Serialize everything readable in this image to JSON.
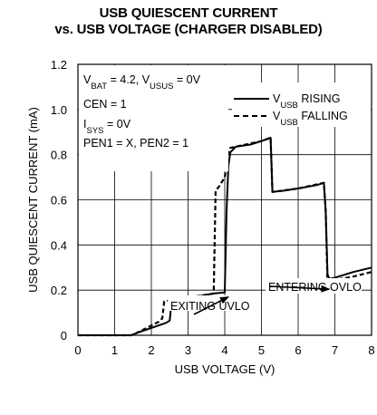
{
  "chart_data": {
    "type": "line",
    "title": "USB QUIESCENT CURRENT",
    "subtitle": "vs. USB VOLTAGE (CHARGER DISABLED)",
    "xlabel": "USB VOLTAGE (V)",
    "ylabel": "USB QUIESCENT CURRENT (mA)",
    "xlim": [
      0,
      8
    ],
    "ylim": [
      0,
      1.2
    ],
    "x_ticks": [
      0,
      1,
      2,
      3,
      4,
      5,
      6,
      7,
      8
    ],
    "y_ticks": [
      0,
      0.2,
      0.4,
      0.6,
      0.8,
      1.0,
      1.2
    ],
    "y_tick_labels": [
      "0",
      "0.2",
      "0.4",
      "0.6",
      "0.8",
      "1.0",
      "1.2"
    ],
    "grid": true,
    "legend_position": "top-right",
    "series": [
      {
        "name": "V_USB RISING",
        "style": "solid",
        "x": [
          0,
          1.45,
          1.6,
          2.4,
          2.5,
          2.55,
          3.7,
          4.0,
          4.05,
          4.1,
          4.15,
          4.3,
          4.7,
          5.0,
          5.25,
          5.3,
          5.6,
          6.0,
          6.5,
          6.7,
          6.75,
          6.8,
          6.85,
          7.0,
          7.5,
          8.0
        ],
        "y": [
          0,
          0.0,
          0.01,
          0.055,
          0.065,
          0.15,
          0.185,
          0.19,
          0.55,
          0.75,
          0.81,
          0.835,
          0.845,
          0.86,
          0.875,
          0.635,
          0.64,
          0.65,
          0.665,
          0.675,
          0.55,
          0.27,
          0.25,
          0.255,
          0.28,
          0.3
        ]
      },
      {
        "name": "V_USB FALLING",
        "style": "dashed",
        "x": [
          0,
          1.45,
          1.6,
          2.2,
          2.3,
          2.35,
          3.7,
          3.75,
          3.85,
          4.0,
          4.1,
          4.15,
          4.3,
          5.0,
          5.25,
          5.3,
          6.0,
          6.7,
          6.75,
          6.8,
          7.0,
          7.5,
          8.0
        ],
        "y": [
          0,
          0.0,
          0.01,
          0.06,
          0.075,
          0.15,
          0.185,
          0.64,
          0.66,
          0.7,
          0.81,
          0.83,
          0.835,
          0.86,
          0.875,
          0.635,
          0.65,
          0.675,
          0.55,
          0.23,
          0.245,
          0.26,
          0.28
        ]
      }
    ],
    "legend": [
      {
        "base": "V",
        "sub": "USB",
        "suffix": " RISING",
        "style": "solid"
      },
      {
        "base": "V",
        "sub": "USB",
        "suffix": " FALLING",
        "style": "dashed"
      }
    ],
    "conditions": [
      [
        {
          "t": "V"
        },
        {
          "t": "BAT",
          "sub": true
        },
        {
          "t": " = 4.2, V"
        },
        {
          "t": "USUS",
          "sub": true
        },
        {
          "t": " = 0V"
        }
      ],
      [
        {
          "t": "CEN = 1"
        }
      ],
      [
        {
          "t": "I"
        },
        {
          "t": "SYS",
          "sub": true
        },
        {
          "t": " = 0V"
        }
      ],
      [
        {
          "t": "PEN1 = X, PEN2 = 1"
        }
      ]
    ],
    "annotations": [
      {
        "text": "EXITING UVLO",
        "arrow_to": [
          4.05,
          0.19
        ],
        "label_at": [
          4.2,
          0.1
        ]
      },
      {
        "text": "ENTERING OVLO",
        "arrow_to": [
          6.8,
          0.22
        ],
        "label_at": [
          6.9,
          0.15
        ]
      }
    ]
  }
}
